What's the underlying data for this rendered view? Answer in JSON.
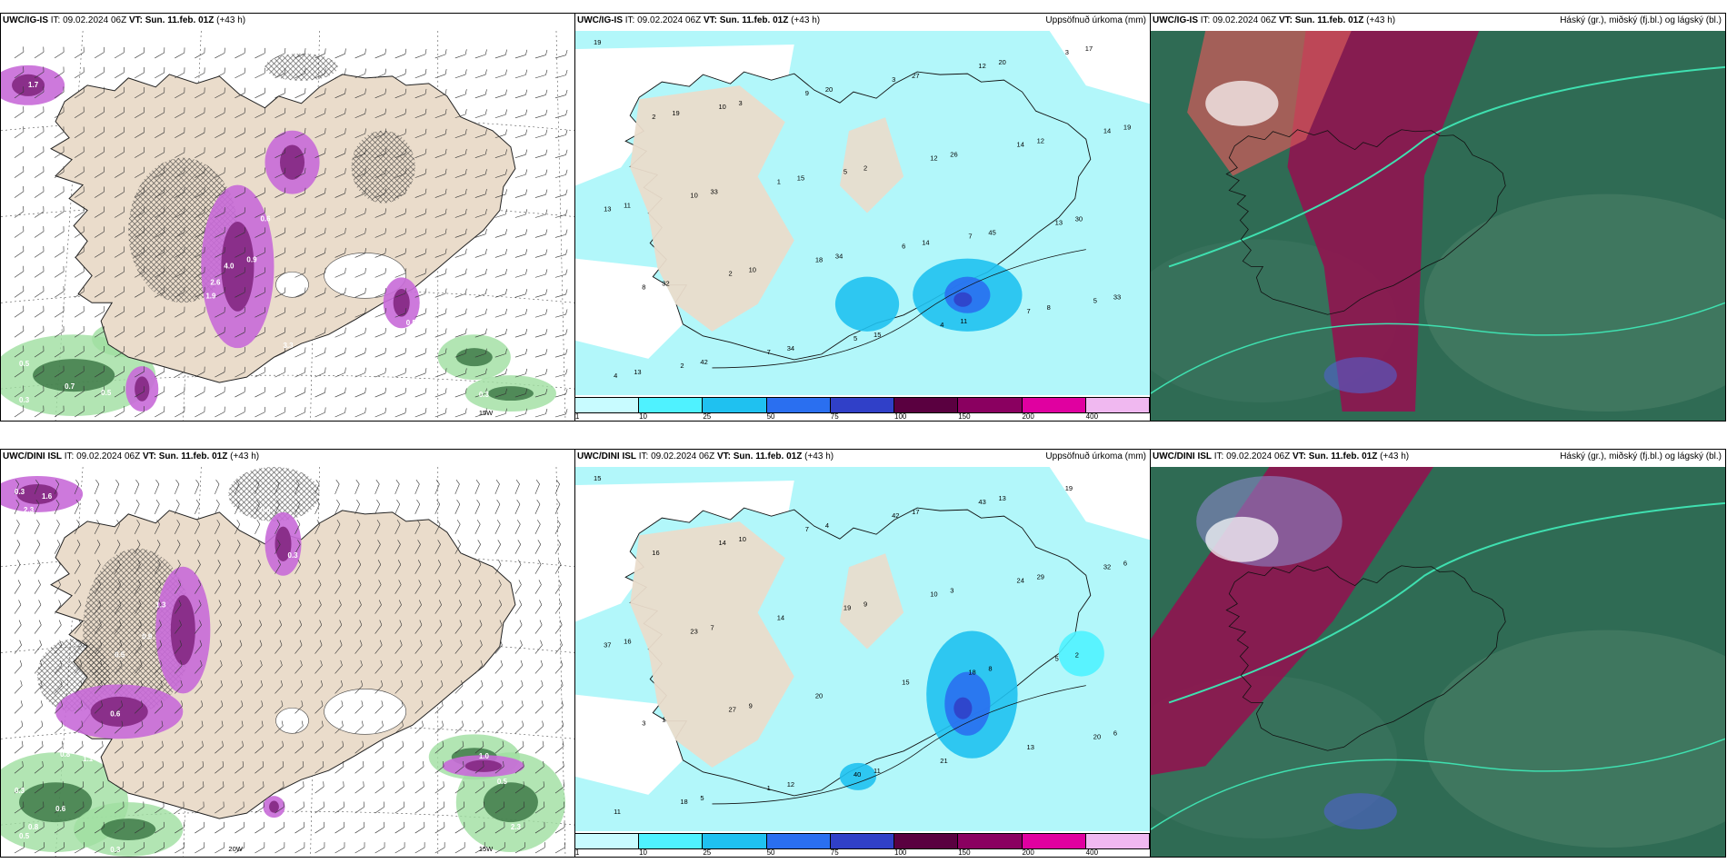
{
  "rows": [
    {
      "model": "UWC/IG-IS",
      "it_label": "IT:",
      "it_value": "09.02.2024 06Z",
      "vt_label": "VT:",
      "vt_value": "Sun. 11.feb. 01Z",
      "lead": "(+43 h)",
      "precip_title": "Uppsöfnuð úrkoma (mm)",
      "cloud_title": "Háský (gr.), miðský (fj.bl.) og lágský (bl.)",
      "wind_labels": [
        "0.7",
        "0.5",
        "1.7",
        "0.3",
        "0.5",
        "0.7",
        "0.3",
        "0.5",
        "4.0",
        "2.6",
        "1.9",
        "3.3",
        "0.9",
        "0.9",
        "0.6",
        "0.5",
        "0.3"
      ],
      "precip_labels": [
        "19",
        "10",
        "5",
        "7",
        "5",
        "2",
        "9",
        "12",
        "13",
        "8",
        "7",
        "3",
        "14",
        "13",
        "2",
        "5",
        "12",
        "14",
        "10",
        "18",
        "4",
        "3",
        "2",
        "1",
        "6",
        "7",
        "4",
        "3",
        "2",
        "45",
        "33",
        "42",
        "20",
        "26",
        "30",
        "32",
        "34",
        "27",
        "12",
        "11",
        "10",
        "15",
        "20",
        "19",
        "33",
        "34",
        "11",
        "17",
        "19",
        "15",
        "14",
        "8",
        "13"
      ],
      "lon_label": "15W"
    },
    {
      "model": "UWC/DINI ISL",
      "it_label": "IT:",
      "it_value": "09.02.2024 06Z",
      "vt_label": "VT:",
      "vt_value": "Sun. 11.feb. 01Z",
      "lead": "(+43 h)",
      "precip_title": "Uppsöfnuð úrkoma (mm)",
      "cloud_title": "Háský (gr.), miðský (fj.bl.) og lágský (bl.)",
      "wind_labels": [
        "0.3",
        "1.6",
        "2.3",
        "0.5",
        "0.3",
        "1.3",
        "0.9",
        "0.5",
        "0.6",
        "0.8",
        "1.1",
        "0.3",
        "0.6",
        "0.5",
        "0.3",
        "0.8",
        "1.0",
        "0.5",
        "2.3"
      ],
      "precip_labels": [
        "15",
        "14",
        "19",
        "18",
        "20",
        "18",
        "7",
        "10",
        "5",
        "3",
        "1",
        "42",
        "24",
        "37",
        "27",
        "40",
        "43",
        "32",
        "23",
        "20",
        "21",
        "19",
        "16",
        "14",
        "15",
        "13",
        "11",
        "10",
        "9",
        "8",
        "6",
        "5",
        "4",
        "3",
        "2",
        "1",
        "12",
        "17",
        "29",
        "16",
        "9",
        "11",
        "13",
        "6",
        "7"
      ],
      "lon_label": "20W",
      "lon_label2": "15W"
    }
  ],
  "colorbar": {
    "labels": [
      "1",
      "10",
      "25",
      "50",
      "75",
      "100",
      "150",
      "200",
      "400"
    ],
    "colors": [
      "#c8fbff",
      "#4ff2ff",
      "#1fc1f0",
      "#2a6ff0",
      "#3040c8",
      "#5a0040",
      "#8a0060",
      "#e000a0",
      "#f0b8f0"
    ]
  },
  "colors": {
    "land_beige": "#eadccb",
    "sea_cyan": "#b2f7fa",
    "cloud_green": "#2f6b54",
    "cloud_maroon": "#8b1850",
    "precip_magenta": "#c86ad8"
  }
}
